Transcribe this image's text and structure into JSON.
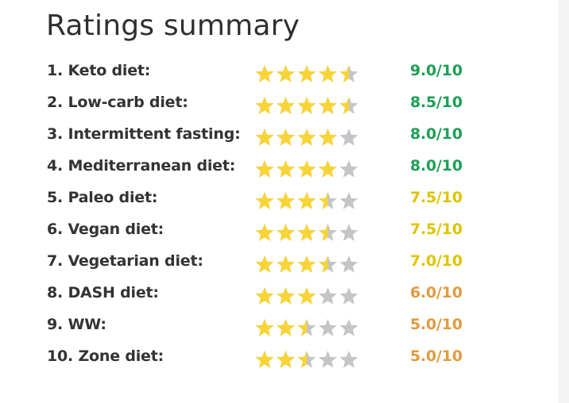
{
  "title": "Ratings summary",
  "colors": {
    "star_filled": "#f8d437",
    "star_empty": "#c4c5c7",
    "score_green": "#1e9e55",
    "score_yellow": "#ddc400",
    "score_orange": "#e39a3e"
  },
  "items": [
    {
      "label": "1. Keto diet:",
      "score": "9.0/10",
      "stars": 4.5,
      "tier": "score_green"
    },
    {
      "label": "2. Low-carb diet:",
      "score": "8.5/10",
      "stars": 4.5,
      "tier": "score_green"
    },
    {
      "label": "3. Intermittent fasting:",
      "score": "8.0/10",
      "stars": 4,
      "tier": "score_green"
    },
    {
      "label": "4. Mediterranean diet:",
      "score": "8.0/10",
      "stars": 4,
      "tier": "score_green"
    },
    {
      "label": "5. Paleo diet:",
      "score": "7.5/10",
      "stars": 3.5,
      "tier": "score_yellow"
    },
    {
      "label": "6. Vegan diet:",
      "score": "7.5/10",
      "stars": 3.5,
      "tier": "score_yellow"
    },
    {
      "label": "7. Vegetarian diet:",
      "score": "7.0/10",
      "stars": 3.5,
      "tier": "score_yellow"
    },
    {
      "label": "8. DASH diet:",
      "score": "6.0/10",
      "stars": 3,
      "tier": "score_orange"
    },
    {
      "label": "9. WW:",
      "score": "5.0/10",
      "stars": 2.5,
      "tier": "score_orange"
    },
    {
      "label": "10. Zone diet:",
      "score": "5.0/10",
      "stars": 2.5,
      "tier": "score_orange"
    }
  ]
}
